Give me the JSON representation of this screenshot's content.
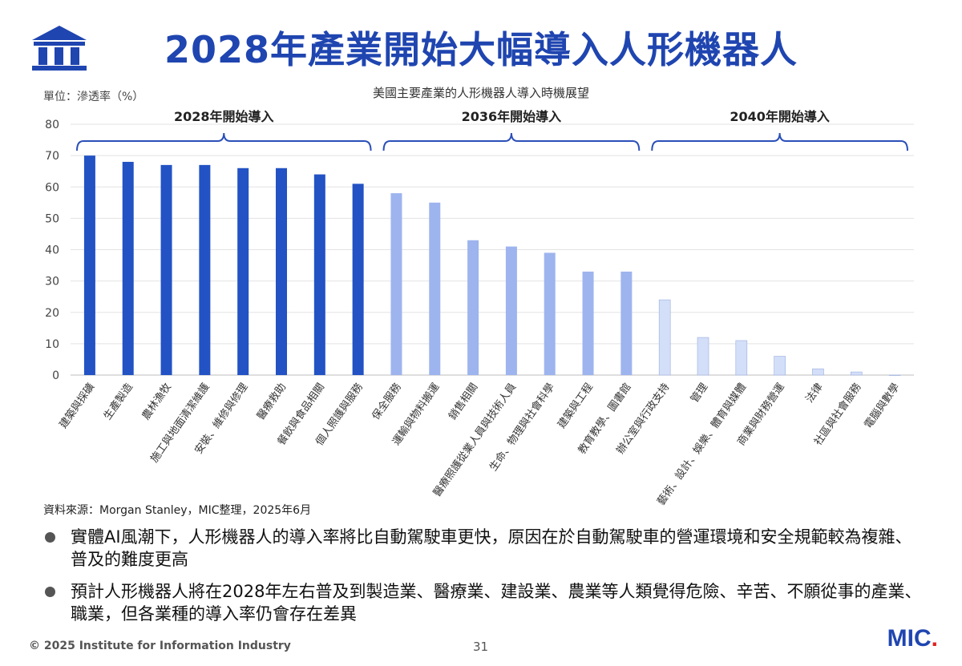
{
  "header": {
    "title": "2028年產業開始大幅導入人形機器人"
  },
  "chart_meta": {
    "unit_label": "單位：滲透率（%）",
    "title": "美國主要產業的人形機器人導入時機展望"
  },
  "chart_data": {
    "type": "bar",
    "title": "美國主要產業的人形機器人導入時機展望",
    "ylabel": "單位：滲透率（%）",
    "ylim": [
      0,
      80
    ],
    "yticks": [
      "80",
      "70",
      "60",
      "50",
      "40",
      "30",
      "20",
      "10",
      "0"
    ],
    "categories": [
      "建築與採礦",
      "生產製造",
      "農林漁牧",
      "施工與地面清潔維護",
      "安裝、維修與修理",
      "醫療救助",
      "餐飲與食品相關",
      "個人照護與服務",
      "保全服務",
      "運輸與物料搬運",
      "銷售相關",
      "醫療照護從業人員與技術人員",
      "生命、物理與社會科學",
      "建築與工程",
      "教育教學、圖書館",
      "辦公室與行政支持",
      "管理",
      "藝術、設計、娛樂、體育與媒體",
      "商業與財務營運",
      "法律",
      "社區與社會服務",
      "電腦與數學"
    ],
    "values": [
      70,
      68,
      67,
      67,
      66,
      66,
      64,
      61,
      58,
      55,
      43,
      41,
      39,
      33,
      33,
      24,
      12,
      11,
      6,
      2,
      1,
      0
    ],
    "groups": [
      {
        "label": "2028年開始導入",
        "start": 0,
        "end": 7,
        "color": "#2252c4"
      },
      {
        "label": "2036年開始導入",
        "start": 8,
        "end": 14,
        "color": "#9db4ee"
      },
      {
        "label": "2040年開始導入",
        "start": 15,
        "end": 21,
        "color": "#d3def8"
      }
    ]
  },
  "source": "資料來源：Morgan Stanley，MIC整理，2025年6月",
  "bullets": [
    "實體AI風潮下，人形機器人的導入率將比自動駕駛車更快，原因在於自動駕駛車的營運環境和安全規範較為複雜、普及的難度更高",
    "預計人形機器人將在2028年左右普及到製造業、醫療業、建設業、農業等人類覺得危險、辛苦、不願從事的產業、職業，但各業種的導入率仍會存在差異"
  ],
  "footer": {
    "copyright": "© 2025 Institute for Information Industry",
    "page_number": "31",
    "logo_text": "MIC",
    "logo_dot": "."
  }
}
